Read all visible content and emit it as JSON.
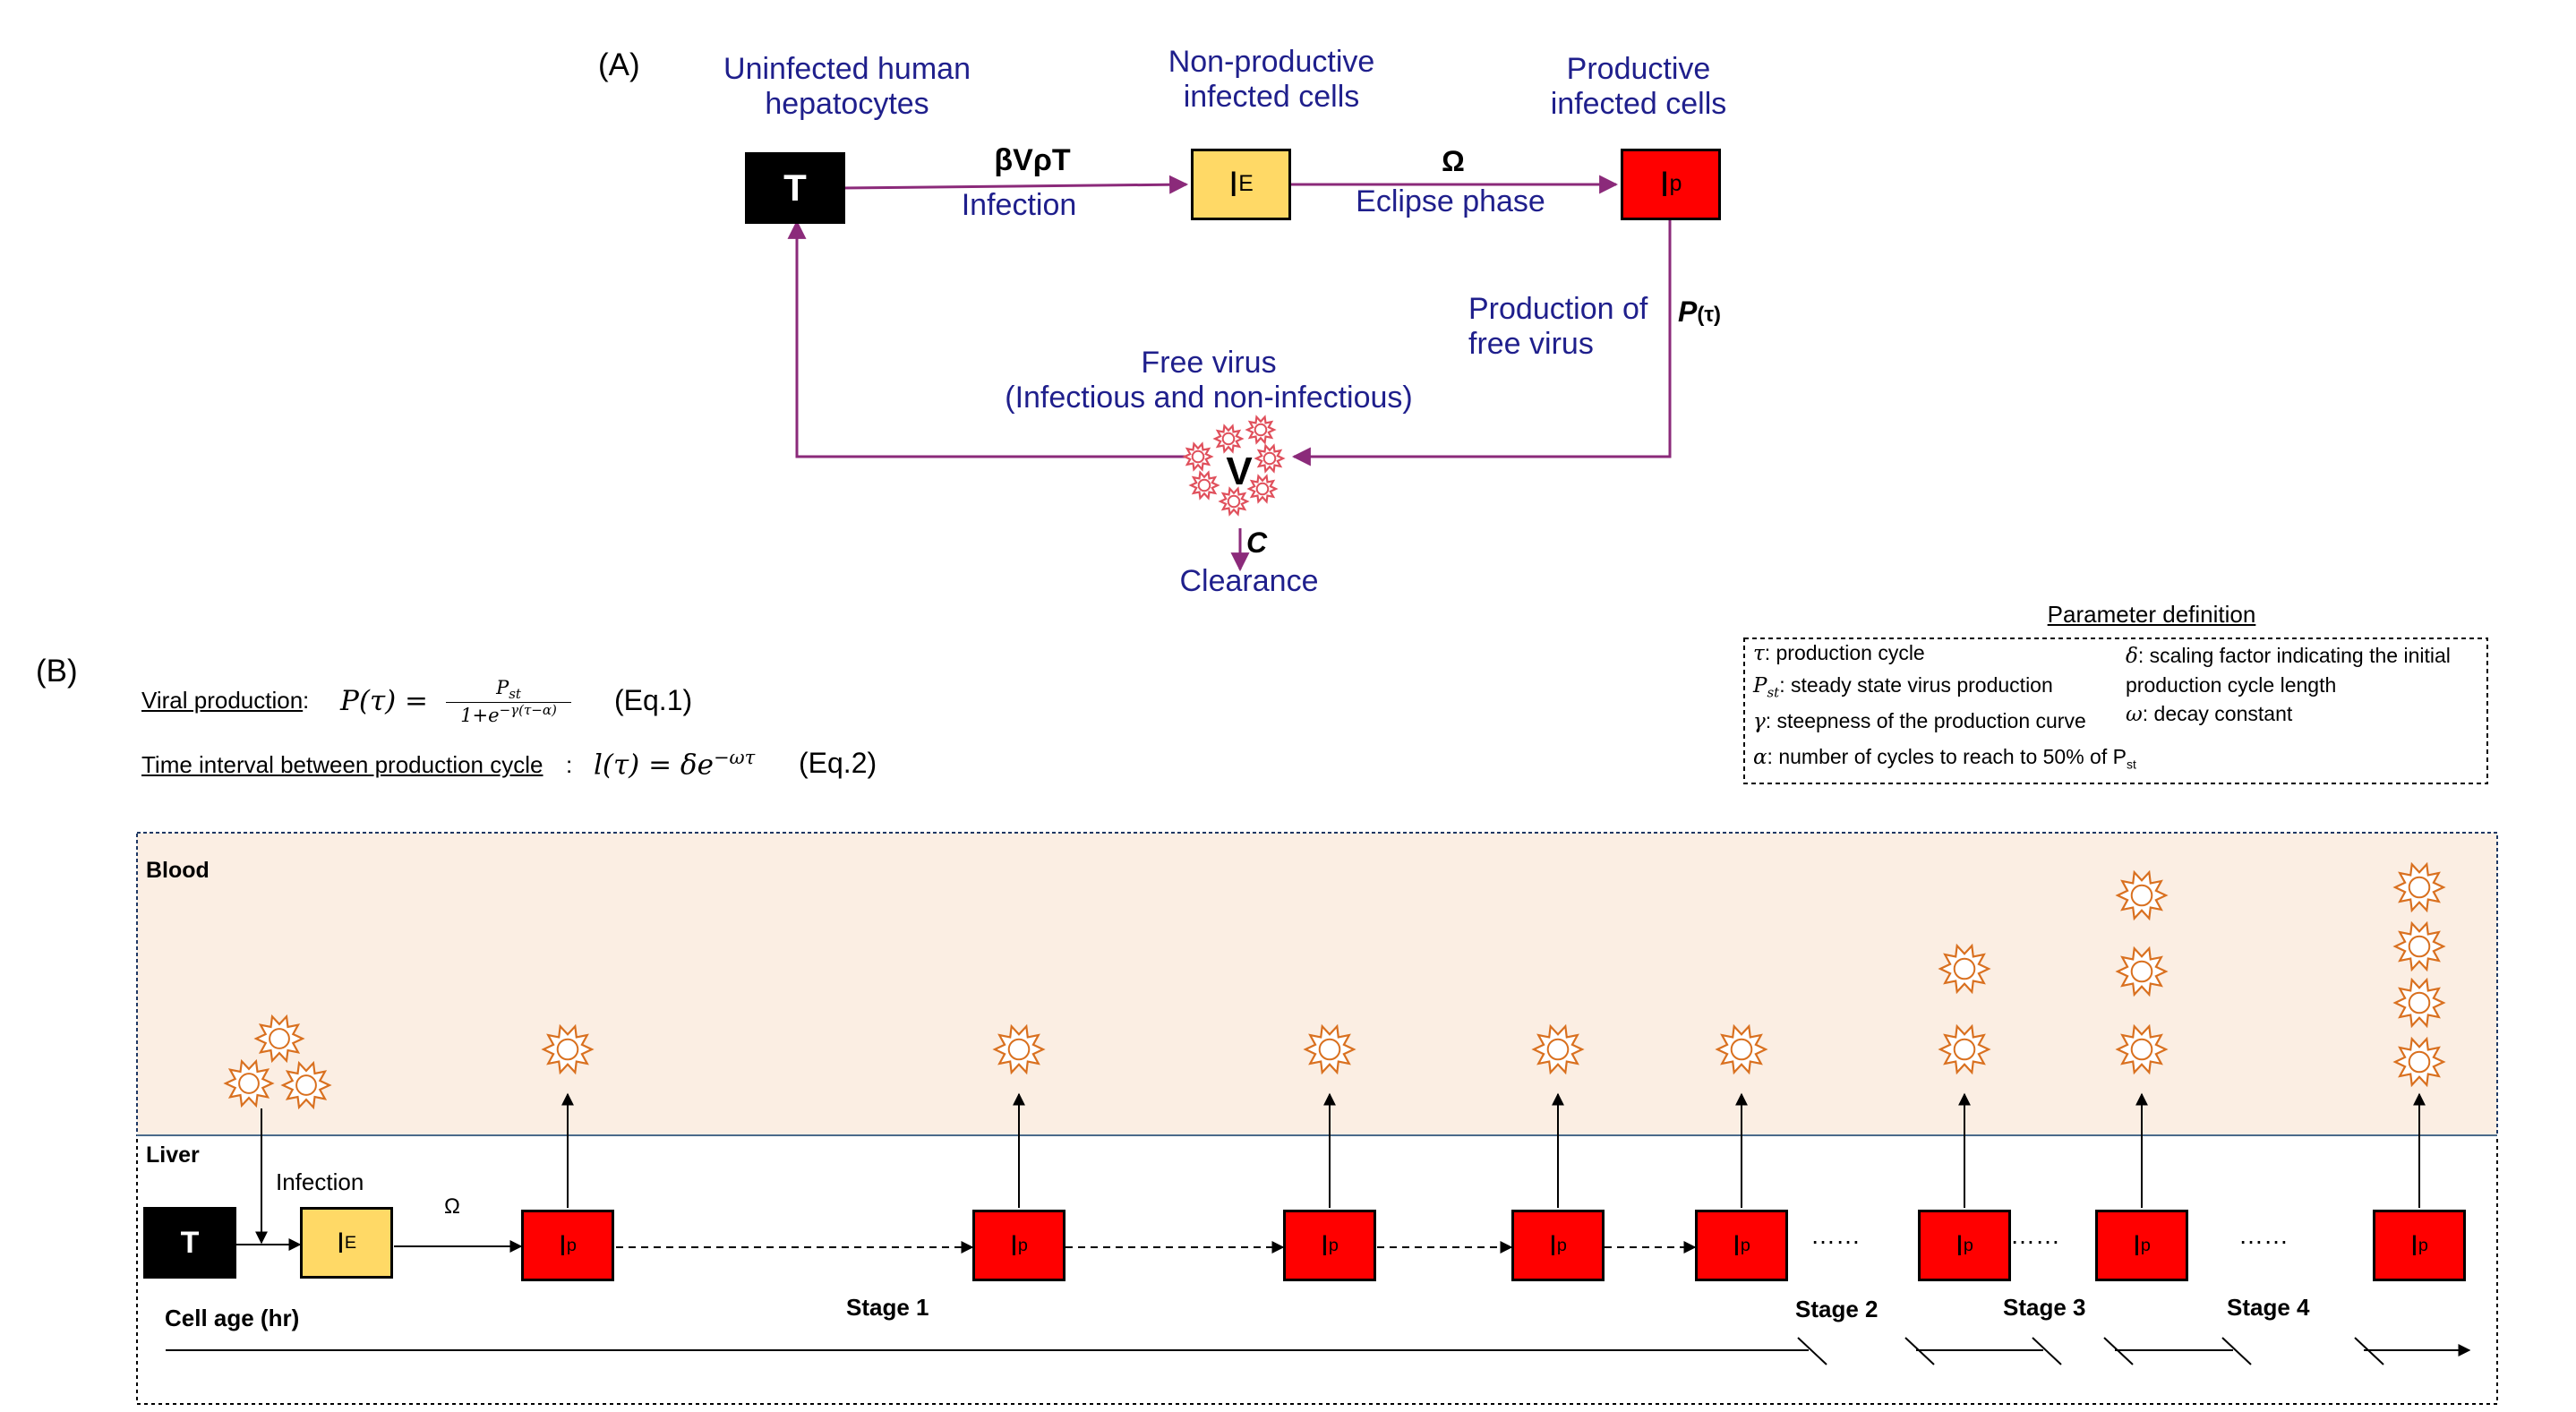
{
  "panel_a": {
    "label": "(A)",
    "nodes": {
      "T": {
        "caption": [
          "Uninfected human",
          "hepatocytes"
        ],
        "symbol": "T"
      },
      "IE": {
        "caption": [
          "Non-productive",
          "infected cells"
        ],
        "symbol": "I",
        "sub": "E"
      },
      "IP": {
        "caption": [
          "Productive",
          "infected cells"
        ],
        "symbol": "I",
        "sub": "p"
      },
      "V": {
        "caption": [
          "Free virus",
          "(Infectious and non-infectious)"
        ],
        "symbol": "V"
      }
    },
    "edges": {
      "infection": {
        "rate": "βVρT",
        "name": "Infection"
      },
      "eclipse": {
        "rate": "Ω",
        "name": "Eclipse phase"
      },
      "production": {
        "name": [
          "Production of",
          "free virus"
        ],
        "rate": "P",
        "rate_arg": "(τ)"
      },
      "clearance": {
        "rate": "C",
        "name": "Clearance"
      }
    }
  },
  "panel_b": {
    "label": "(B)",
    "equations": {
      "eq1": {
        "label": "Viral production",
        "tag": "(Eq.1)"
      },
      "eq2": {
        "label": "Time interval between production cycle",
        "tag": "(Eq.2)"
      }
    },
    "parameters": {
      "title": "Parameter definition",
      "items": [
        {
          "sym": "τ",
          "text": ": production cycle"
        },
        {
          "sym": "P",
          "sub": "st",
          "text": ": steady state virus production"
        },
        {
          "sym": "γ",
          "text": ": steepness of the production curve"
        },
        {
          "sym": "α",
          "text": ": number of cycles to reach to 50% of P",
          "text_sub": "st"
        },
        {
          "sym": "δ",
          "text": ": scaling factor indicating the initial production cycle length"
        },
        {
          "sym": "ω",
          "text": ": decay constant"
        }
      ]
    },
    "compartments": {
      "blood": "Blood",
      "liver": "Liver"
    },
    "cells": {
      "T": "T",
      "IE": "I",
      "IE_sub": "E",
      "IP": "I",
      "IP_sub": "p"
    },
    "edge_labels": {
      "infection": "Infection",
      "eclipse": "Ω"
    },
    "ellipsis": "……",
    "timeline": {
      "label": "Cell age (hr)",
      "stages": [
        "Stage 1",
        "Stage 2",
        "Stage 3",
        "Stage 4"
      ]
    },
    "virions_per_cell": [
      1,
      1,
      1,
      1,
      1,
      2,
      3,
      4
    ]
  },
  "colors": {
    "navy_text": "#1f1f8c",
    "arrow_purple": "#8b2a7a",
    "cell_T": "#000000",
    "cell_IE": "#ffd966",
    "cell_IP": "#ff0000",
    "blood_bg": "#fbeee3",
    "virus_orange": "#d9701f",
    "virus_red": "#e0505c"
  }
}
